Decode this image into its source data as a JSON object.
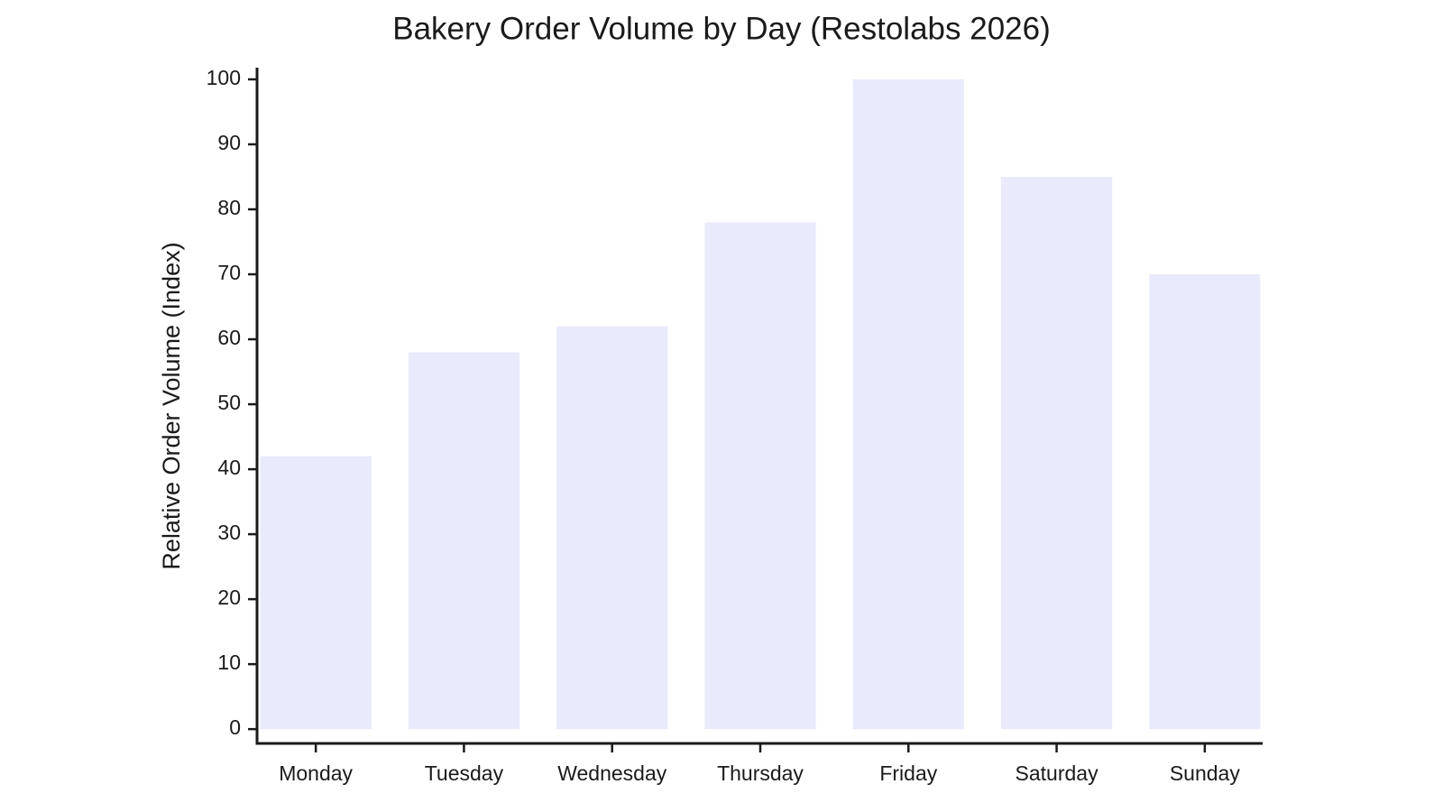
{
  "chart_data": {
    "type": "bar",
    "title": "Bakery Order Volume by Day (Restolabs 2026)",
    "y_label": "Relative Order Volume (Index)",
    "categories": [
      "Monday",
      "Tuesday",
      "Wednesday",
      "Thursday",
      "Friday",
      "Saturday",
      "Sunday"
    ],
    "values": [
      42,
      58,
      62,
      78,
      100,
      85,
      70
    ],
    "color": "#eaeafd",
    "ylim": [
      -2.2,
      101.8
    ],
    "yticks": [
      0,
      10,
      20,
      30,
      40,
      50,
      60,
      70,
      80,
      90,
      100
    ],
    "grid": false
  }
}
